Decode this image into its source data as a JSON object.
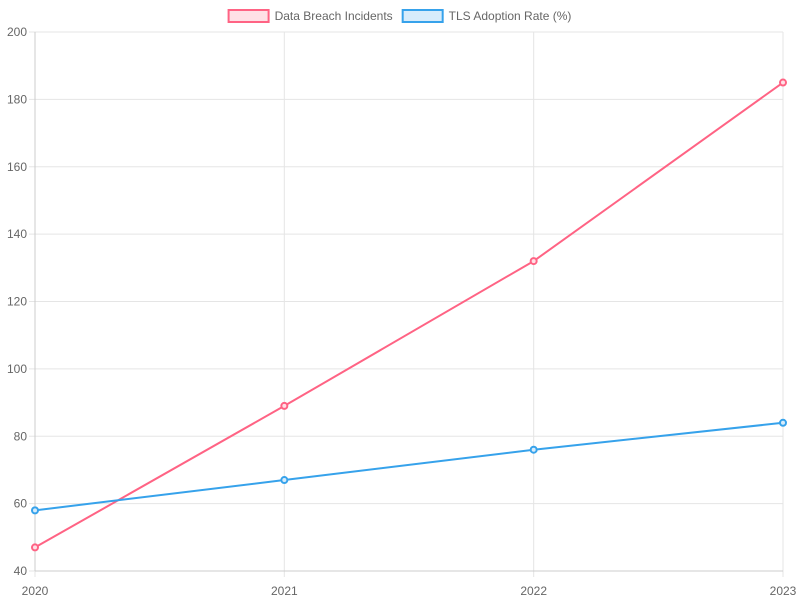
{
  "chart_data": {
    "type": "line",
    "categories": [
      "2020",
      "2021",
      "2022",
      "2023"
    ],
    "series": [
      {
        "name": "Data Breach Incidents",
        "values": [
          47,
          89,
          132,
          185
        ],
        "color": "#ff6384",
        "fill": "#ffe0e6"
      },
      {
        "name": "TLS Adoption Rate (%)",
        "values": [
          58,
          67,
          76,
          84
        ],
        "color": "#36a2eb",
        "fill": "#d7ecfb"
      }
    ],
    "ylim": [
      40,
      200
    ],
    "yticks": [
      "40",
      "60",
      "80",
      "100",
      "120",
      "140",
      "160",
      "180",
      "200"
    ],
    "grid": true,
    "legend_position": "top"
  }
}
